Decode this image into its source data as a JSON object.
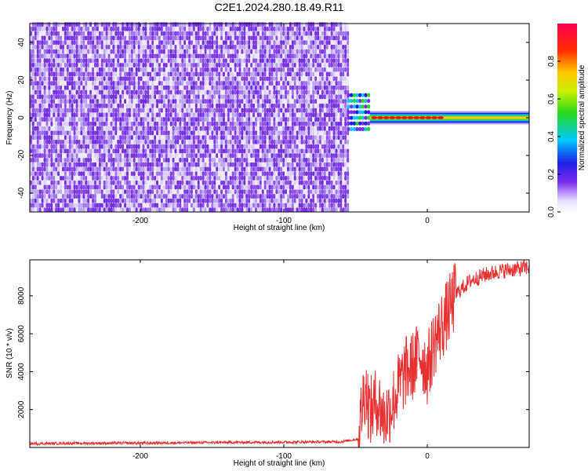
{
  "chart_data": [
    {
      "type": "heatmap",
      "title": "C2E1.2024.280.18.49.R11",
      "xlabel": "Height of straight line (km)",
      "ylabel": "Frequency (Hz)",
      "xlim": [
        -277,
        71
      ],
      "ylim": [
        -50,
        50
      ],
      "xticks": [
        -200,
        -100,
        0
      ],
      "yticks": [
        -40,
        -20,
        0,
        20,
        40
      ],
      "colorbar": {
        "label": "Normalized spectral amplitude",
        "range": [
          0,
          1
        ],
        "ticks": [
          0.0,
          0.2,
          0.4,
          0.6,
          0.8
        ],
        "tick_labels": [
          "0.0",
          "0.2",
          "0.4",
          "0.6",
          "0.8"
        ]
      },
      "regions": [
        {
          "x_range": [
            -277,
            -56
          ],
          "freq_range": [
            -50,
            50
          ],
          "amplitude": "low",
          "color": "#6a1fe0"
        },
        {
          "x_range": [
            -56,
            71
          ],
          "freq_center": 0,
          "amplitude": "high",
          "color": "#ff0000"
        }
      ],
      "grid": false
    },
    {
      "type": "line",
      "xlabel": "Height of straight line (km)",
      "ylabel": "SNR (10 * v/v)",
      "xlim": [
        -277,
        71
      ],
      "ylim": [
        0,
        9900
      ],
      "xticks": [
        -200,
        -100,
        0
      ],
      "yticks": [
        2000,
        4000,
        6000,
        8000
      ],
      "color": "#e83030",
      "grid": false,
      "x": [
        -277,
        -250,
        -200,
        -150,
        -100,
        -60,
        -48,
        -45,
        -43,
        -40,
        -35,
        -30,
        -25,
        -20,
        -15,
        -10,
        -5,
        0,
        5,
        10,
        15,
        20,
        30,
        40,
        50,
        60,
        71
      ],
      "y": [
        200,
        220,
        230,
        260,
        280,
        300,
        450,
        2500,
        3200,
        1800,
        2500,
        1500,
        2200,
        3200,
        4000,
        4300,
        5000,
        4100,
        5600,
        6400,
        7200,
        8100,
        8800,
        9100,
        9300,
        9400,
        9500
      ]
    }
  ]
}
